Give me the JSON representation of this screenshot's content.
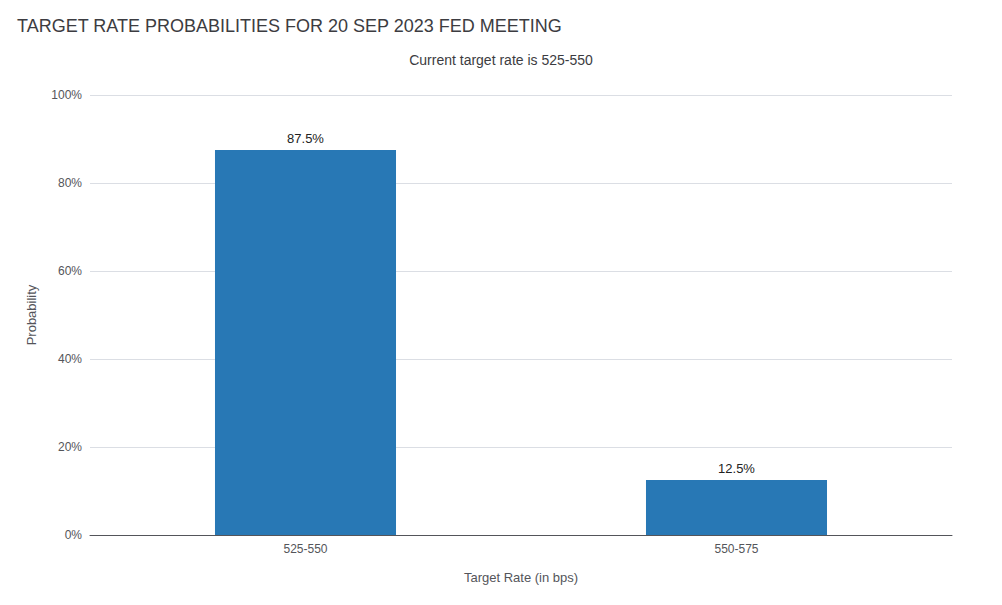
{
  "chart_data": {
    "type": "bar",
    "title": "TARGET RATE PROBABILITIES FOR 20 SEP 2023 FED MEETING",
    "subtitle": "Current target rate is 525-550",
    "categories": [
      "525-550",
      "550-575"
    ],
    "values": [
      87.5,
      12.5
    ],
    "value_labels": [
      "87.5%",
      "12.5%"
    ],
    "data_labels": true,
    "color": "#2878b5",
    "xlabel": "Target Rate (in bps)",
    "ylabel": "Probability",
    "ylim": [
      0,
      100
    ],
    "yticks": [
      {
        "value": 0,
        "label": "0%"
      },
      {
        "value": 20,
        "label": "20%"
      },
      {
        "value": 40,
        "label": "40%"
      },
      {
        "value": 60,
        "label": "60%"
      },
      {
        "value": 80,
        "label": "80%"
      },
      {
        "value": 100,
        "label": "100%"
      }
    ],
    "grid": true
  }
}
